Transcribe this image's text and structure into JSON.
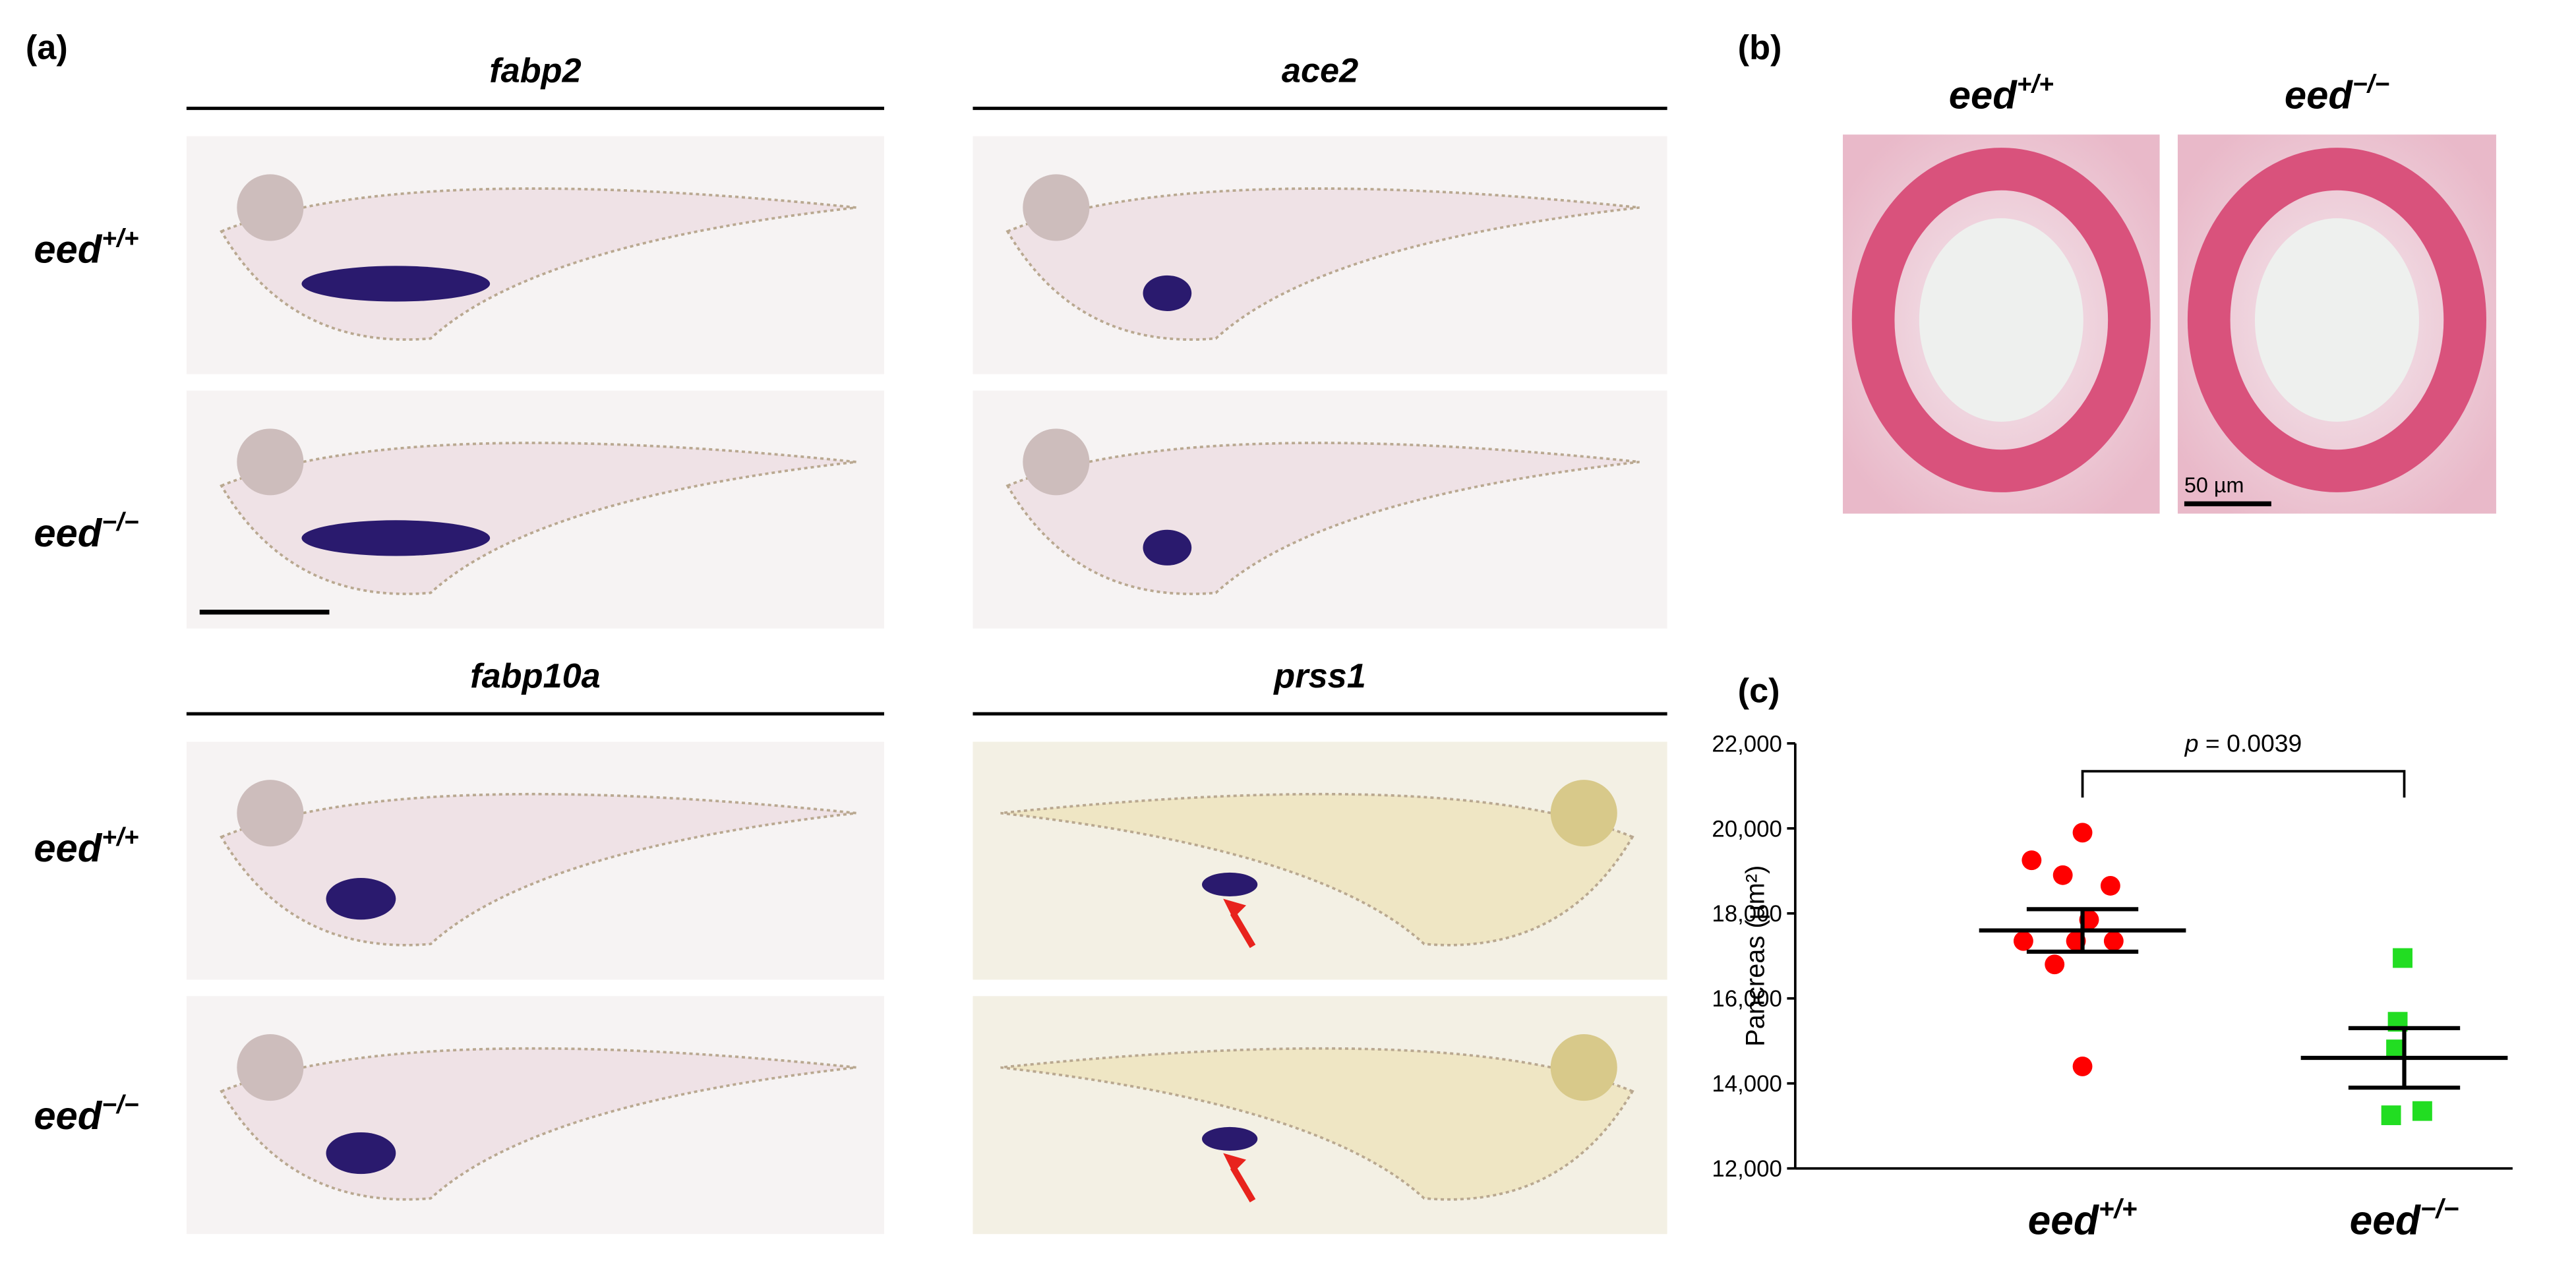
{
  "panel_labels": [
    "(a)",
    "(b)",
    "(c)"
  ],
  "panel_a": {
    "genes": [
      "fabp2",
      "ace2",
      "fabp10a",
      "prss1"
    ],
    "genotypes": [
      {
        "base": "eed",
        "sup": "+/+"
      },
      {
        "base": "eed",
        "sup": "−/−"
      }
    ]
  },
  "panel_b": {
    "genotypes": [
      {
        "base": "eed",
        "sup": "+/+"
      },
      {
        "base": "eed",
        "sup": "−/−"
      }
    ],
    "scale_bar": "50 µm"
  },
  "chart_data": {
    "type": "scatter",
    "ylabel": "Pancreas (µm²)",
    "annotation": {
      "italic": "p",
      "text": " = 0.0039"
    },
    "categories": [
      {
        "base": "eed",
        "sup": "+/+"
      },
      {
        "base": "eed",
        "sup": "−/−"
      }
    ],
    "series": [
      {
        "color": "#ff0000",
        "marker": "circle",
        "values": [
          19900,
          19250,
          18900,
          18650,
          17850,
          17350,
          17350,
          17350,
          16800,
          14400
        ],
        "mean": 17600,
        "sem": 500
      },
      {
        "color": "#22dd22",
        "marker": "square",
        "values": [
          16950,
          15450,
          14800,
          13250,
          13350
        ],
        "mean": 14600,
        "sem": 700
      }
    ],
    "ylim": [
      12000,
      22000
    ],
    "yticks": [
      {
        "value": 12000,
        "label": "12,000"
      },
      {
        "value": 14000,
        "label": "14,000"
      },
      {
        "value": 16000,
        "label": "16,000"
      },
      {
        "value": 18000,
        "label": "18,000"
      },
      {
        "value": 20000,
        "label": "20,000"
      },
      {
        "value": 22000,
        "label": "22,000"
      }
    ]
  }
}
